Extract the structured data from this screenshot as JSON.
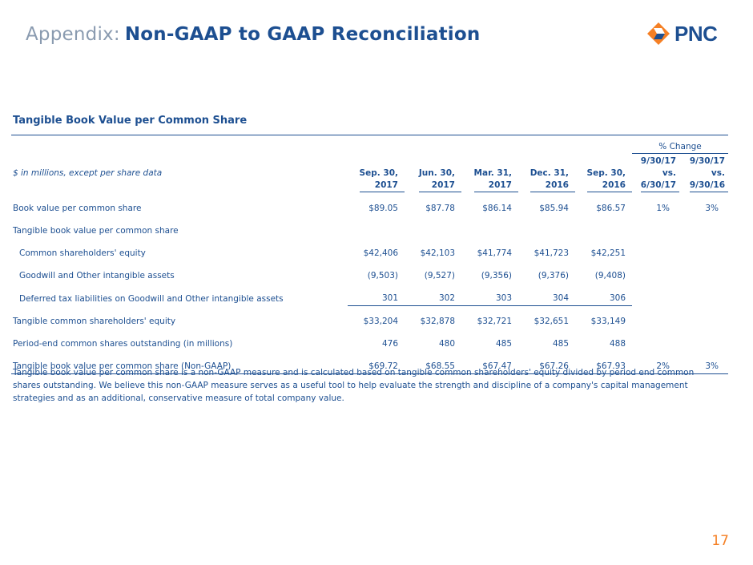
{
  "header": {
    "prefix": "Appendix:",
    "title": "Non-GAAP to GAAP Reconciliation"
  },
  "logo": {
    "text": "PNC",
    "mark_color": "#f58025",
    "mark_inner_color": "#1d4f91"
  },
  "section": {
    "title": "Tangible Book Value per Common Share"
  },
  "table": {
    "units_label": "$ in millions, except per share data",
    "pct_change_label": "% Change",
    "columns": [
      {
        "line1": "Sep. 30,",
        "line2": "2017"
      },
      {
        "line1": "Jun. 30,",
        "line2": "2017"
      },
      {
        "line1": "Mar. 31,",
        "line2": "2017"
      },
      {
        "line1": "Dec. 31,",
        "line2": "2016"
      },
      {
        "line1": "Sep. 30,",
        "line2": "2016"
      }
    ],
    "pct_columns": [
      {
        "line1": "9/30/17",
        "line2": "vs.",
        "line3": "6/30/17"
      },
      {
        "line1": "9/30/17",
        "line2": "vs.",
        "line3": "9/30/16"
      }
    ],
    "rows": [
      {
        "label": "Book value per common share",
        "values": [
          "$89.05",
          "$87.78",
          "$86.14",
          "$85.94",
          "$86.57"
        ],
        "pct": [
          "1%",
          "3%"
        ]
      },
      {
        "label": "Tangible book value per common share",
        "values": [
          "",
          "",
          "",
          "",
          ""
        ],
        "pct": [
          "",
          ""
        ]
      },
      {
        "label": "Common shareholders' equity",
        "values": [
          "$42,406",
          "$42,103",
          "$41,774",
          "$41,723",
          "$42,251"
        ],
        "pct": [
          "",
          ""
        ]
      },
      {
        "label": "Goodwill and Other intangible assets",
        "values": [
          "(9,503)",
          "(9,527)",
          "(9,356)",
          "(9,376)",
          "(9,408)"
        ],
        "pct": [
          "",
          ""
        ]
      },
      {
        "label": "Deferred tax liabilities on Goodwill and Other intangible assets",
        "values": [
          "301",
          "302",
          "303",
          "304",
          "306"
        ],
        "pct": [
          "",
          ""
        ]
      },
      {
        "label": "Tangible common shareholders' equity",
        "values": [
          "$33,204",
          "$32,878",
          "$32,721",
          "$32,651",
          "$33,149"
        ],
        "pct": [
          "",
          ""
        ]
      },
      {
        "label": "Period-end common shares outstanding (in millions)",
        "values": [
          "476",
          "480",
          "485",
          "485",
          "488"
        ],
        "pct": [
          "",
          ""
        ]
      },
      {
        "label": "Tangible book value per common share (Non-GAAP)",
        "values": [
          "$69.72",
          "$68.55",
          "$67.47",
          "$67.26",
          "$67.93"
        ],
        "pct": [
          "2%",
          "3%"
        ]
      }
    ]
  },
  "footnote": "Tangible book value per common share is a non-GAAP measure and is calculated based on tangible common shareholders' equity divided by period end common shares outstanding. We believe this non-GAAP measure serves as a useful tool to help evaluate the strength and discipline of a company's capital management strategies and as an additional, conservative measure of total company value.",
  "page_number": "17",
  "colors": {
    "primary": "#1d4f91",
    "muted": "#8a9bb0",
    "accent": "#f58025"
  }
}
